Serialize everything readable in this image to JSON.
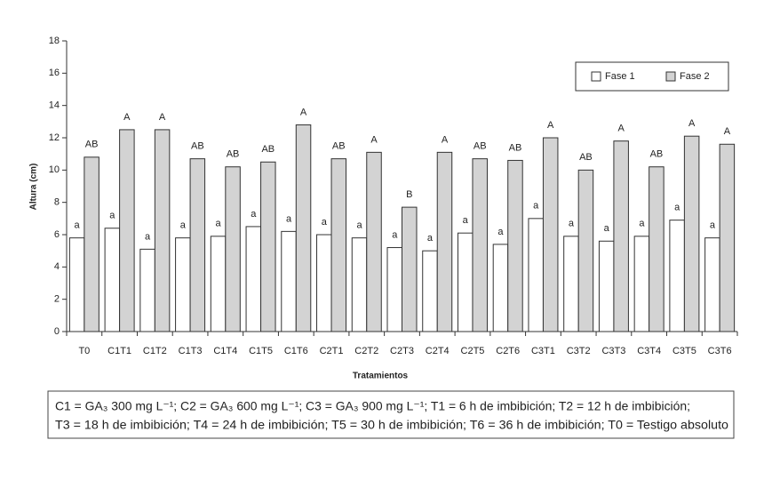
{
  "chart_data": {
    "type": "bar",
    "y_label": "Altura (cm)",
    "x_label": "Tratamientos",
    "categories": [
      "T0",
      "C1T1",
      "C1T2",
      "C1T3",
      "C1T4",
      "C1T5",
      "C1T6",
      "C2T1",
      "C2T2",
      "C2T3",
      "C2T4",
      "C2T5",
      "C2T6",
      "C3T1",
      "C3T2",
      "C3T3",
      "C3T4",
      "C3T5",
      "C3T6"
    ],
    "series": [
      {
        "name": "Fase 1",
        "color": "#ffffff",
        "values": [
          5.8,
          6.4,
          5.1,
          5.8,
          5.9,
          6.5,
          6.2,
          6.0,
          5.8,
          5.2,
          5.0,
          6.1,
          5.4,
          7.0,
          5.9,
          5.6,
          5.9,
          6.9,
          5.8
        ],
        "letters": [
          "a",
          "a",
          "a",
          "a",
          "a",
          "a",
          "a",
          "a",
          "a",
          "a",
          "a",
          "a",
          "a",
          "a",
          "a",
          "a",
          "a",
          "a",
          "a"
        ]
      },
      {
        "name": "Fase 2",
        "color": "#d3d3d3",
        "values": [
          10.8,
          12.5,
          12.5,
          10.7,
          10.2,
          10.5,
          12.8,
          10.7,
          11.1,
          7.7,
          11.1,
          10.7,
          10.6,
          12.0,
          10.0,
          11.8,
          10.2,
          12.1,
          11.6
        ],
        "letters": [
          "AB",
          "A",
          "A",
          "AB",
          "AB",
          "AB",
          "A",
          "AB",
          "A",
          "B",
          "A",
          "AB",
          "AB",
          "A",
          "AB",
          "A",
          "AB",
          "A",
          "A"
        ]
      }
    ],
    "ylim": [
      0,
      18
    ],
    "yticks": [
      0,
      2,
      4,
      6,
      8,
      10,
      12,
      14,
      16,
      18
    ],
    "grid": false,
    "legend": "upper right",
    "footnote": [
      "C1 = GA₃ 300 mg L⁻¹; C2 = GA₃ 600 mg L⁻¹; C3 = GA₃ 900 mg L⁻¹; T1 = 6 h de imbibición; T2 = 12 h de imbibición;",
      "T3 = 18 h de imbibición; T4 = 24 h de imbibición; T5 = 30 h de imbibición; T6 = 36 h de imbibición; T0 = Testigo absoluto"
    ]
  }
}
